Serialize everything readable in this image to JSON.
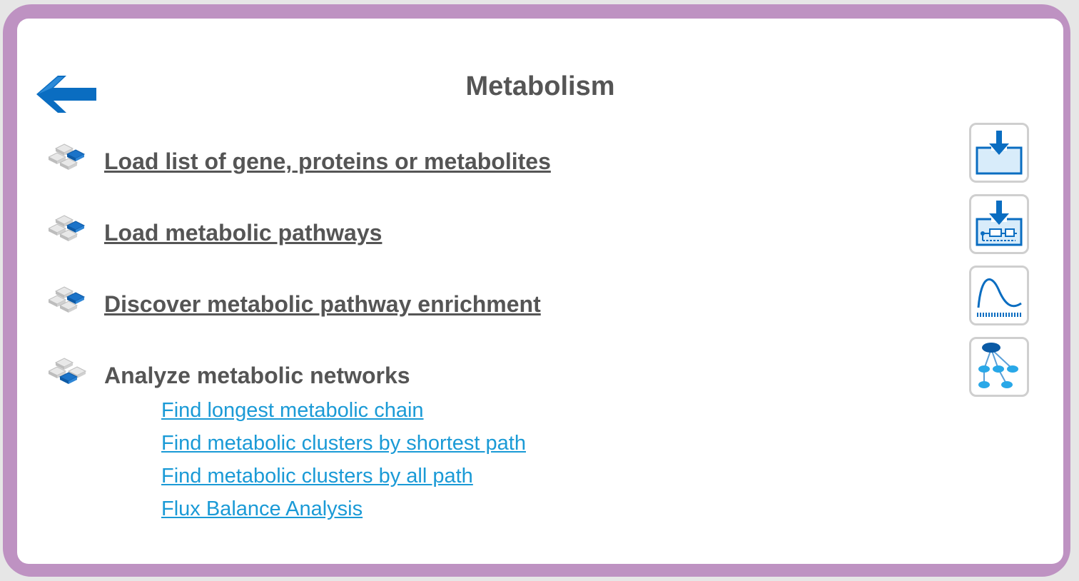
{
  "page": {
    "title": "Metabolism",
    "colors": {
      "frame": "#be92c2",
      "title_text": "#555555",
      "sub_link": "#1a9ad6",
      "accent_blue": "#0a6dc1"
    }
  },
  "back_button": {
    "icon": "arrow-left-icon"
  },
  "menu": {
    "items": [
      {
        "label": "Load list of gene, proteins or metabolites",
        "icon": "cube-icon"
      },
      {
        "label": "Load metabolic pathways",
        "icon": "cube-icon"
      },
      {
        "label": "Discover metabolic pathway enrichment",
        "icon": "cube-icon"
      },
      {
        "label": "Analyze metabolic networks",
        "icon": "cube-icon"
      }
    ],
    "sub_items": [
      {
        "label": "Find longest metabolic chain"
      },
      {
        "label": "Find metabolic clusters by shortest path"
      },
      {
        "label": "Find metabolic clusters by all path"
      },
      {
        "label": "Flux Balance Analysis"
      }
    ]
  },
  "side_toolbar": {
    "buttons": [
      {
        "icon": "import-list-icon"
      },
      {
        "icon": "import-pathway-icon"
      },
      {
        "icon": "enrichment-curve-icon"
      },
      {
        "icon": "network-tree-icon"
      }
    ]
  }
}
